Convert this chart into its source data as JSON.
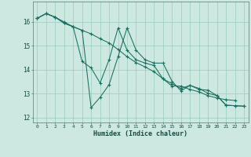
{
  "xlabel": "Humidex (Indice chaleur)",
  "ylabel": "",
  "bg_color": "#cce8e0",
  "grid_color": "#99ccbb",
  "line_color": "#1a7060",
  "ylim": [
    11.8,
    16.85
  ],
  "xlim": [
    -0.5,
    23.5
  ],
  "yticks": [
    12,
    13,
    14,
    15,
    16
  ],
  "xticks": [
    0,
    1,
    2,
    3,
    4,
    5,
    6,
    7,
    8,
    9,
    10,
    11,
    12,
    13,
    14,
    15,
    16,
    17,
    18,
    19,
    20,
    21,
    22,
    23
  ],
  "series": [
    [
      16.15,
      16.35,
      16.2,
      15.95,
      15.8,
      15.65,
      12.42,
      12.85,
      13.38,
      14.55,
      15.75,
      14.82,
      14.42,
      14.28,
      14.28,
      13.52,
      13.12,
      13.35,
      13.18,
      13.15,
      12.92,
      12.52,
      12.5,
      12.48
    ],
    [
      16.15,
      16.35,
      16.2,
      15.95,
      15.8,
      14.35,
      14.08,
      13.45,
      14.42,
      15.75,
      14.82,
      14.42,
      14.28,
      14.18,
      13.62,
      13.32,
      13.32,
      13.18,
      13.08,
      12.92,
      12.82,
      12.75,
      12.72,
      null
    ],
    [
      16.15,
      16.35,
      16.2,
      16.0,
      15.8,
      15.65,
      15.5,
      15.3,
      15.12,
      14.85,
      14.55,
      14.3,
      14.12,
      13.92,
      13.62,
      13.42,
      13.22,
      13.35,
      13.22,
      13.02,
      12.92,
      12.52,
      12.5,
      12.48
    ]
  ]
}
